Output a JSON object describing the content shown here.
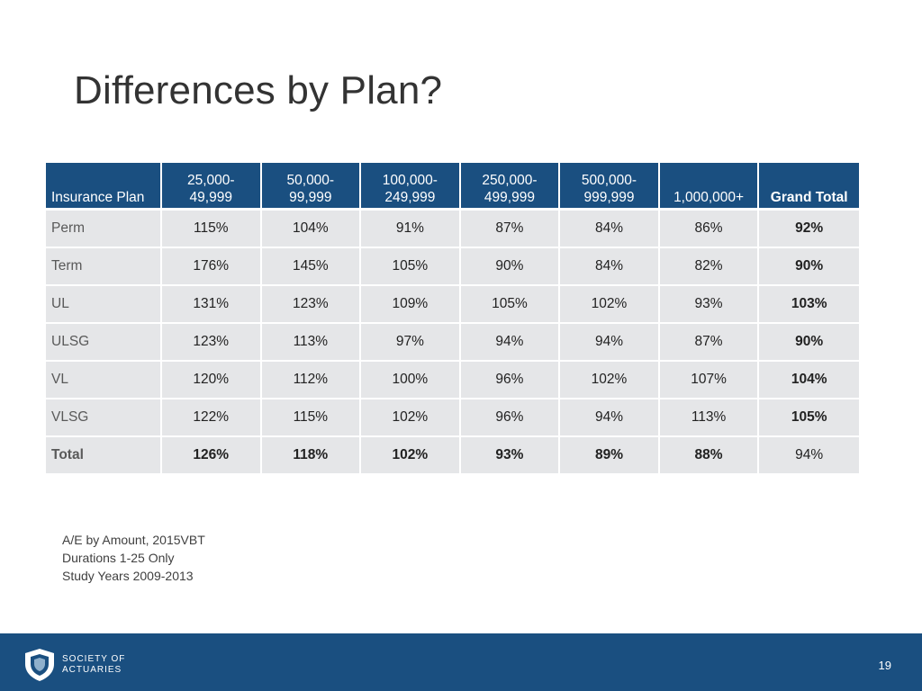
{
  "title": "Differences by Plan?",
  "table": {
    "headers": [
      {
        "line1": "",
        "line2": "Insurance Plan"
      },
      {
        "line1": "25,000-",
        "line2": "49,999"
      },
      {
        "line1": "50,000-",
        "line2": "99,999"
      },
      {
        "line1": "100,000-",
        "line2": "249,999"
      },
      {
        "line1": "250,000-",
        "line2": "499,999"
      },
      {
        "line1": "500,000-",
        "line2": "999,999"
      },
      {
        "line1": "",
        "line2": "1,000,000+"
      },
      {
        "line1": "",
        "line2": "Grand Total"
      }
    ],
    "rows": [
      {
        "plan": "Perm",
        "values": [
          "115%",
          "104%",
          "91%",
          "87%",
          "84%",
          "86%",
          "92%"
        ]
      },
      {
        "plan": "Term",
        "values": [
          "176%",
          "145%",
          "105%",
          "90%",
          "84%",
          "82%",
          "90%"
        ]
      },
      {
        "plan": "UL",
        "values": [
          "131%",
          "123%",
          "109%",
          "105%",
          "102%",
          "93%",
          "103%"
        ]
      },
      {
        "plan": "ULSG",
        "values": [
          "123%",
          "113%",
          "97%",
          "94%",
          "94%",
          "87%",
          "90%"
        ]
      },
      {
        "plan": "VL",
        "values": [
          "120%",
          "112%",
          "100%",
          "96%",
          "102%",
          "107%",
          "104%"
        ]
      },
      {
        "plan": "VLSG",
        "values": [
          "122%",
          "115%",
          "102%",
          "96%",
          "94%",
          "113%",
          "105%"
        ]
      },
      {
        "plan": "Total",
        "values": [
          "126%",
          "118%",
          "102%",
          "93%",
          "89%",
          "88%",
          "94%"
        ]
      }
    ]
  },
  "notes": [
    "A/E by Amount, 2015VBT",
    "Durations 1-25 Only",
    "Study Years 2009-2013"
  ],
  "footer": {
    "logo_line1": "SOCIETY OF",
    "logo_line2": "ACTUARIES",
    "page_number": "19"
  },
  "colors": {
    "header_bg": "#1a4f80",
    "cell_bg": "#e5e6e8",
    "footer_bg": "#1a4f80"
  }
}
